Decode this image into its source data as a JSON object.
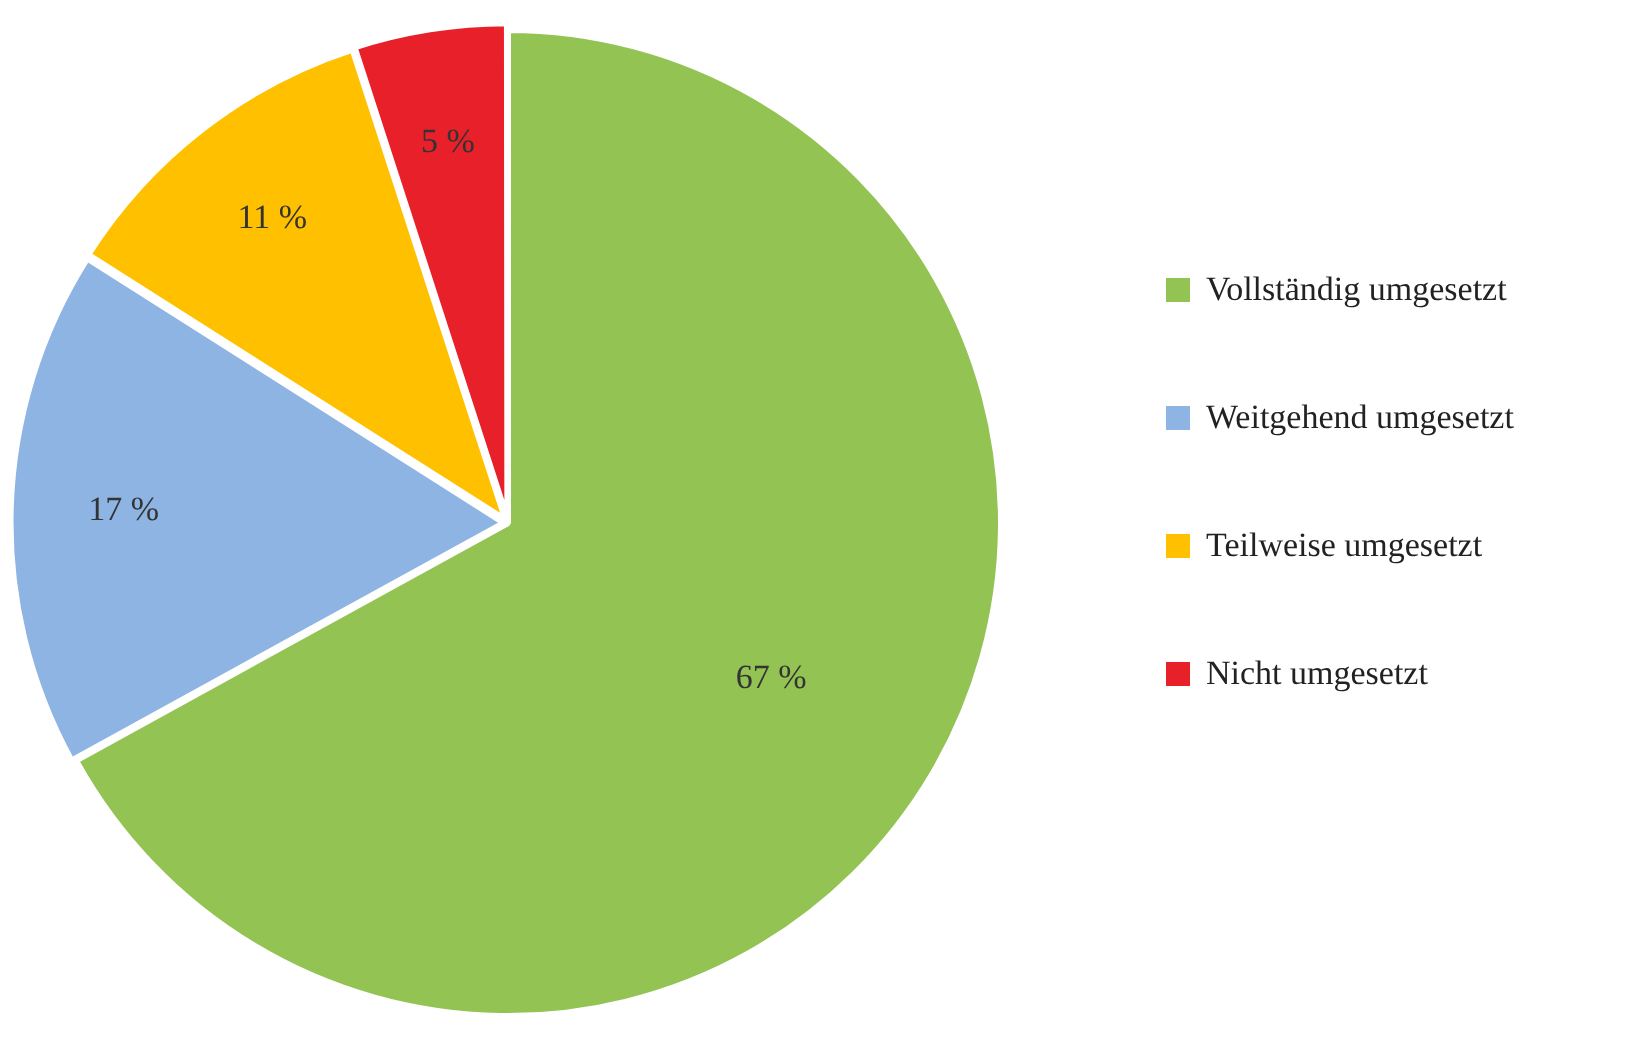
{
  "chart_data": {
    "type": "pie",
    "categories": [
      "Vollständig umgesetzt",
      "Weitgehend umgesetzt",
      "Teilweise umgesetzt",
      "Nicht umgesetzt"
    ],
    "values": [
      67,
      17,
      11,
      5
    ],
    "value_labels": [
      "67 %",
      "17 %",
      "11 %",
      "5 %"
    ],
    "colors": [
      "#92c353",
      "#8eb4e3",
      "#ffc000",
      "#e8202a"
    ],
    "legend": "right"
  }
}
